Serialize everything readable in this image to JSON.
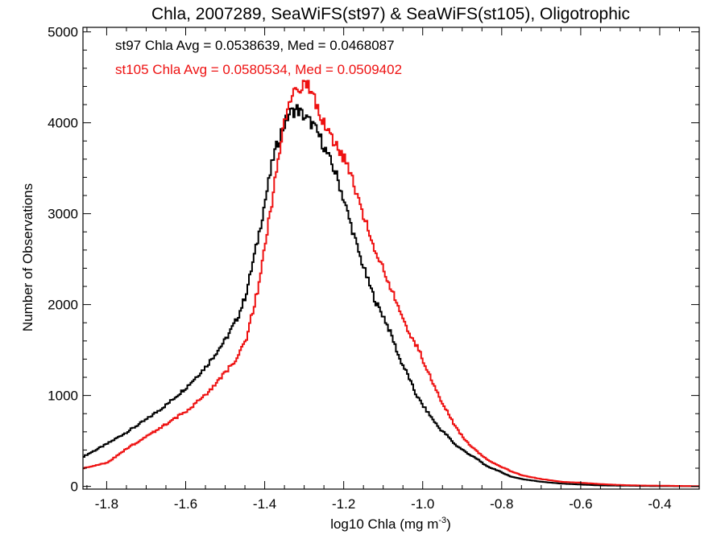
{
  "chart_data": {
    "type": "line",
    "title": "Chla, 2007289, SeaWiFS(st97) & SeaWiFS(st105), Oligotrophic",
    "xlabel_main": "log10 Chla (mg m",
    "xlabel_sup": "-3",
    "xlabel_close": ")",
    "ylabel": "Number of Observations",
    "xlim": [
      -1.86,
      -0.3
    ],
    "ylim": [
      -30,
      5050
    ],
    "x_ticks": [
      -1.8,
      -1.6,
      -1.4,
      -1.2,
      -1.0,
      -0.8,
      -0.6,
      -0.4
    ],
    "x_tick_labels": [
      "-1.8",
      "-1.6",
      "-1.4",
      "-1.2",
      "-1.0",
      "-0.8",
      "-0.6",
      "-0.4"
    ],
    "y_ticks": [
      0,
      1000,
      2000,
      3000,
      4000,
      5000
    ],
    "y_tick_labels": [
      "0",
      "1000",
      "2000",
      "3000",
      "4000",
      "5000"
    ],
    "grid": false,
    "annotations": [
      {
        "text": "st97 Chla Avg = 0.0538639, Med = 0.0468087",
        "color": "#000000"
      },
      {
        "text": "st105 Chla Avg = 0.0580534, Med = 0.0509402",
        "color": "#ee1111"
      }
    ],
    "series": [
      {
        "color": "#000000",
        "x": [
          -1.86,
          -1.8,
          -1.75,
          -1.7,
          -1.65,
          -1.6,
          -1.55,
          -1.5,
          -1.47,
          -1.45,
          -1.42,
          -1.4,
          -1.38,
          -1.36,
          -1.34,
          -1.32,
          -1.3,
          -1.28,
          -1.26,
          -1.24,
          -1.22,
          -1.2,
          -1.18,
          -1.16,
          -1.14,
          -1.12,
          -1.1,
          -1.08,
          -1.06,
          -1.04,
          -1.02,
          -1.0,
          -0.98,
          -0.96,
          -0.94,
          -0.92,
          -0.9,
          -0.88,
          -0.86,
          -0.84,
          -0.82,
          -0.8,
          -0.78,
          -0.75,
          -0.7,
          -0.65,
          -0.6,
          -0.55,
          -0.5,
          -0.45,
          -0.4,
          -0.35,
          -0.3
        ],
        "y": [
          330,
          470,
          600,
          740,
          900,
          1090,
          1320,
          1620,
          1860,
          2100,
          2700,
          3160,
          3620,
          3900,
          4100,
          4150,
          4060,
          3980,
          3820,
          3620,
          3420,
          3130,
          2820,
          2520,
          2260,
          2020,
          1860,
          1650,
          1400,
          1230,
          1020,
          880,
          760,
          640,
          560,
          460,
          400,
          340,
          290,
          220,
          190,
          150,
          110,
          80,
          50,
          30,
          20,
          10,
          8,
          5,
          3,
          2,
          1
        ]
      },
      {
        "color": "#ee1111",
        "x": [
          -1.86,
          -1.8,
          -1.75,
          -1.7,
          -1.65,
          -1.6,
          -1.55,
          -1.5,
          -1.47,
          -1.45,
          -1.42,
          -1.4,
          -1.38,
          -1.36,
          -1.34,
          -1.32,
          -1.3,
          -1.28,
          -1.26,
          -1.24,
          -1.22,
          -1.2,
          -1.18,
          -1.16,
          -1.14,
          -1.12,
          -1.1,
          -1.08,
          -1.06,
          -1.04,
          -1.02,
          -1.0,
          -0.98,
          -0.96,
          -0.94,
          -0.92,
          -0.9,
          -0.88,
          -0.86,
          -0.84,
          -0.82,
          -0.8,
          -0.78,
          -0.75,
          -0.7,
          -0.65,
          -0.6,
          -0.55,
          -0.5,
          -0.45,
          -0.4,
          -0.35,
          -0.3
        ],
        "y": [
          200,
          260,
          420,
          550,
          690,
          830,
          1010,
          1260,
          1420,
          1600,
          2150,
          2680,
          3240,
          3830,
          4250,
          4380,
          4450,
          4300,
          4090,
          3900,
          3750,
          3600,
          3380,
          3070,
          2830,
          2580,
          2370,
          2140,
          1960,
          1730,
          1570,
          1380,
          1180,
          980,
          830,
          660,
          540,
          440,
          370,
          300,
          250,
          210,
          170,
          120,
          80,
          50,
          40,
          25,
          15,
          10,
          8,
          5,
          3
        ]
      }
    ]
  }
}
